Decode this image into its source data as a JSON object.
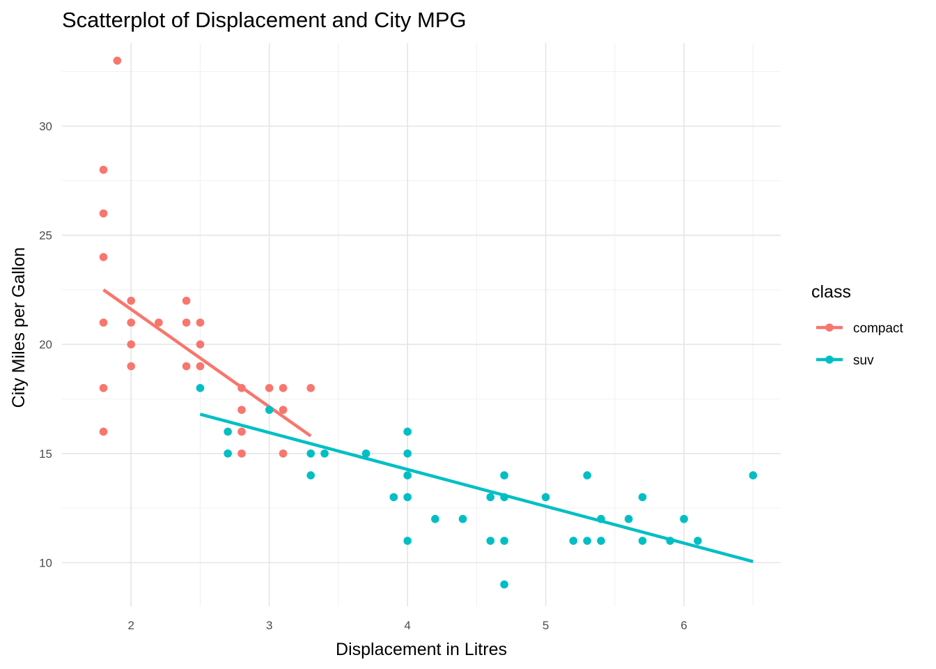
{
  "chart_data": {
    "type": "scatter",
    "title": "Scatterplot of Displacement and City MPG",
    "xlabel": "Displacement in Litres",
    "ylabel": "City Miles per Gallon",
    "xlim": [
      1.5,
      6.7
    ],
    "ylim": [
      8.0,
      33.8
    ],
    "x_ticks": [
      2,
      3,
      4,
      5,
      6
    ],
    "y_ticks": [
      10,
      15,
      20,
      25,
      30
    ],
    "x_minor": [
      2.5,
      3.5,
      4.5,
      5.5,
      6.5
    ],
    "y_minor": [
      12.5,
      17.5,
      22.5,
      27.5,
      32.5
    ],
    "grid": true,
    "legend": {
      "title": "class",
      "position": "right"
    },
    "series": [
      {
        "name": "compact",
        "color": "#F8766D",
        "points": [
          [
            1.9,
            33
          ],
          [
            1.8,
            28
          ],
          [
            1.8,
            26
          ],
          [
            1.8,
            24
          ],
          [
            1.8,
            21
          ],
          [
            1.8,
            18
          ],
          [
            1.8,
            16
          ],
          [
            2.0,
            22
          ],
          [
            2.0,
            21
          ],
          [
            2.0,
            20
          ],
          [
            2.0,
            19
          ],
          [
            2.2,
            21
          ],
          [
            2.4,
            22
          ],
          [
            2.4,
            21
          ],
          [
            2.4,
            19
          ],
          [
            2.5,
            21
          ],
          [
            2.5,
            20
          ],
          [
            2.5,
            19
          ],
          [
            2.8,
            18
          ],
          [
            2.8,
            17
          ],
          [
            2.8,
            16
          ],
          [
            2.8,
            15
          ],
          [
            3.0,
            18
          ],
          [
            3.1,
            18
          ],
          [
            3.1,
            17
          ],
          [
            3.1,
            15
          ],
          [
            3.3,
            18
          ]
        ],
        "trend": [
          [
            1.8,
            22.5
          ],
          [
            3.3,
            15.8
          ]
        ]
      },
      {
        "name": "suv",
        "color": "#00BFC4",
        "points": [
          [
            2.5,
            18
          ],
          [
            2.7,
            16
          ],
          [
            2.7,
            15
          ],
          [
            3.0,
            17
          ],
          [
            3.3,
            15
          ],
          [
            3.3,
            14
          ],
          [
            3.4,
            15
          ],
          [
            3.7,
            15
          ],
          [
            3.9,
            13
          ],
          [
            4.0,
            16
          ],
          [
            4.0,
            15
          ],
          [
            4.0,
            14
          ],
          [
            4.0,
            13
          ],
          [
            4.0,
            11
          ],
          [
            4.2,
            12
          ],
          [
            4.4,
            12
          ],
          [
            4.6,
            13
          ],
          [
            4.6,
            11
          ],
          [
            4.7,
            14
          ],
          [
            4.7,
            13
          ],
          [
            4.7,
            11
          ],
          [
            4.7,
            9
          ],
          [
            5.0,
            13
          ],
          [
            5.2,
            11
          ],
          [
            5.3,
            14
          ],
          [
            5.3,
            11
          ],
          [
            5.4,
            12
          ],
          [
            5.4,
            11
          ],
          [
            5.6,
            12
          ],
          [
            5.7,
            13
          ],
          [
            5.7,
            11
          ],
          [
            5.9,
            11
          ],
          [
            6.0,
            12
          ],
          [
            6.1,
            11
          ],
          [
            6.5,
            14
          ]
        ],
        "trend": [
          [
            2.5,
            16.8
          ],
          [
            6.5,
            10.05
          ]
        ]
      }
    ]
  }
}
